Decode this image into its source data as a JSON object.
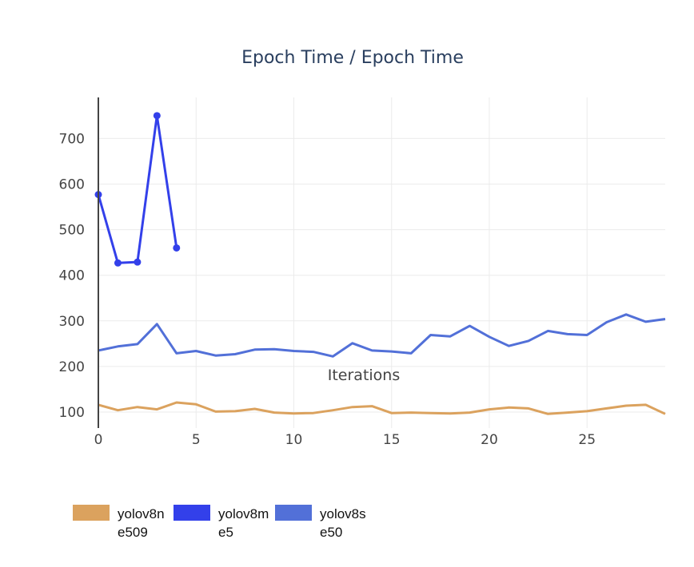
{
  "chart_data": {
    "type": "line",
    "title": "Epoch Time / Epoch Time",
    "xlabel": "Iterations",
    "ylabel": "",
    "xlim": [
      0,
      29
    ],
    "ylim": [
      65,
      790
    ],
    "x_ticks": [
      0,
      5,
      10,
      15,
      20,
      25
    ],
    "y_ticks": [
      100,
      200,
      300,
      400,
      500,
      600,
      700
    ],
    "grid": true,
    "legend_position": "bottom-left",
    "series": [
      {
        "name_lines": [
          "yolov8n",
          "e509"
        ],
        "color": "#dba25e",
        "markers": false,
        "x": [
          0,
          1,
          2,
          3,
          4,
          5,
          6,
          7,
          8,
          9,
          10,
          11,
          12,
          13,
          14,
          15,
          16,
          17,
          18,
          19,
          20,
          21,
          22,
          23,
          24,
          25,
          26,
          27,
          28,
          29
        ],
        "values": [
          116,
          104,
          111,
          106,
          121,
          117,
          101,
          102,
          107,
          99,
          97,
          98,
          104,
          111,
          113,
          98,
          99,
          98,
          97,
          99,
          106,
          110,
          108,
          96,
          99,
          102,
          108,
          114,
          116,
          96
        ]
      },
      {
        "name_lines": [
          "yolov8m",
          "e5"
        ],
        "color": "#3340ea",
        "markers": true,
        "x": [
          0,
          1,
          2,
          3,
          4
        ],
        "values": [
          577,
          427,
          429,
          750,
          460
        ]
      },
      {
        "name_lines": [
          "yolov8s",
          "e50"
        ],
        "color": "#5270d8",
        "markers": false,
        "x": [
          0,
          1,
          2,
          3,
          4,
          5,
          6,
          7,
          8,
          9,
          10,
          11,
          12,
          13,
          14,
          15,
          16,
          17,
          18,
          19,
          20,
          21,
          22,
          23,
          24,
          25,
          26,
          27,
          28,
          29
        ],
        "values": [
          235,
          244,
          249,
          293,
          229,
          234,
          224,
          227,
          237,
          238,
          234,
          232,
          222,
          251,
          235,
          233,
          229,
          269,
          266,
          289,
          265,
          245,
          256,
          278,
          271,
          269,
          297,
          314,
          298,
          304
        ]
      }
    ]
  }
}
